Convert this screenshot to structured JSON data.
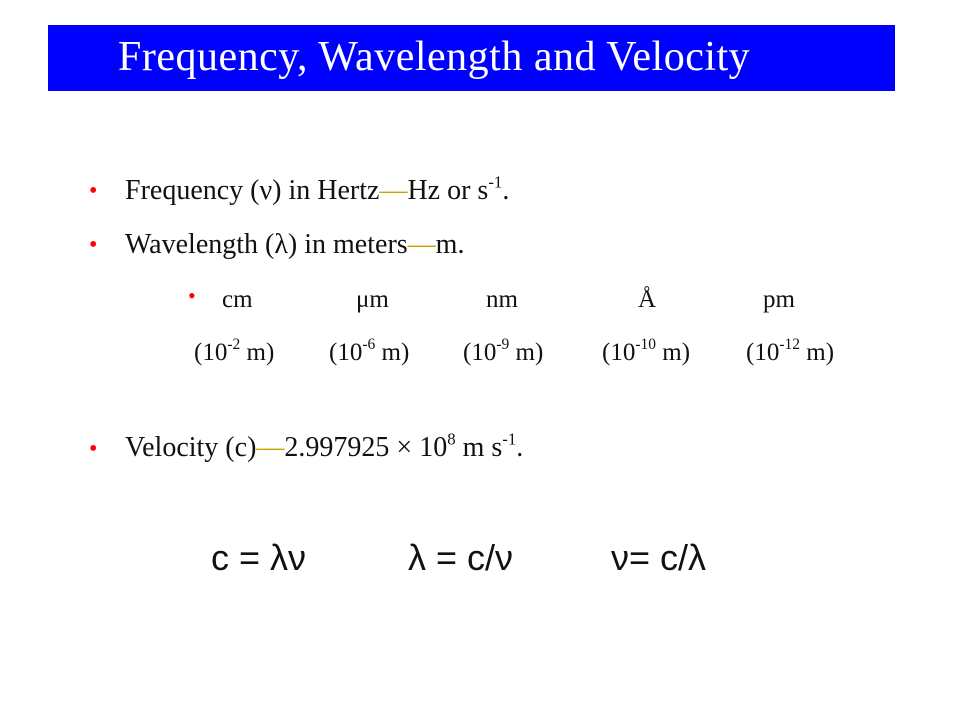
{
  "title": "Frequency, Wavelength and Velocity",
  "bullets": {
    "frequency": {
      "pre": "Frequency (ν) in Hertz",
      "dash": "—",
      "post": "Hz or s",
      "exp": "-1",
      "end": "."
    },
    "wavelength": {
      "pre": "Wavelength (λ) in meters",
      "dash": "—",
      "post": "m."
    },
    "velocity": {
      "pre": "Velocity (c)",
      "dash": "—",
      "value": "2.997925 ",
      "times": "×",
      "base": " 10",
      "exp": "8",
      "unit": " m s",
      "unit_exp": "-1",
      "end": "."
    }
  },
  "units": [
    "cm",
    "μm",
    "nm",
    "Å",
    "pm"
  ],
  "powers": [
    {
      "pre": "(10",
      "exp": "-2",
      "post": " m)"
    },
    {
      "pre": "(10",
      "exp": "-6",
      "post": " m)"
    },
    {
      "pre": "(10",
      "exp": "-9",
      "post": " m)"
    },
    {
      "pre": "(10",
      "exp": "-10",
      "post": " m)"
    },
    {
      "pre": "(10",
      "exp": "-12",
      "post": " m)"
    }
  ],
  "equations": [
    "c = λν",
    "λ = c/ν",
    "ν= c/λ"
  ],
  "colors": {
    "title_bg": "#0000ff",
    "title_text": "#ffffff",
    "bullet": "#ff0000",
    "dash": "#c8a000"
  }
}
